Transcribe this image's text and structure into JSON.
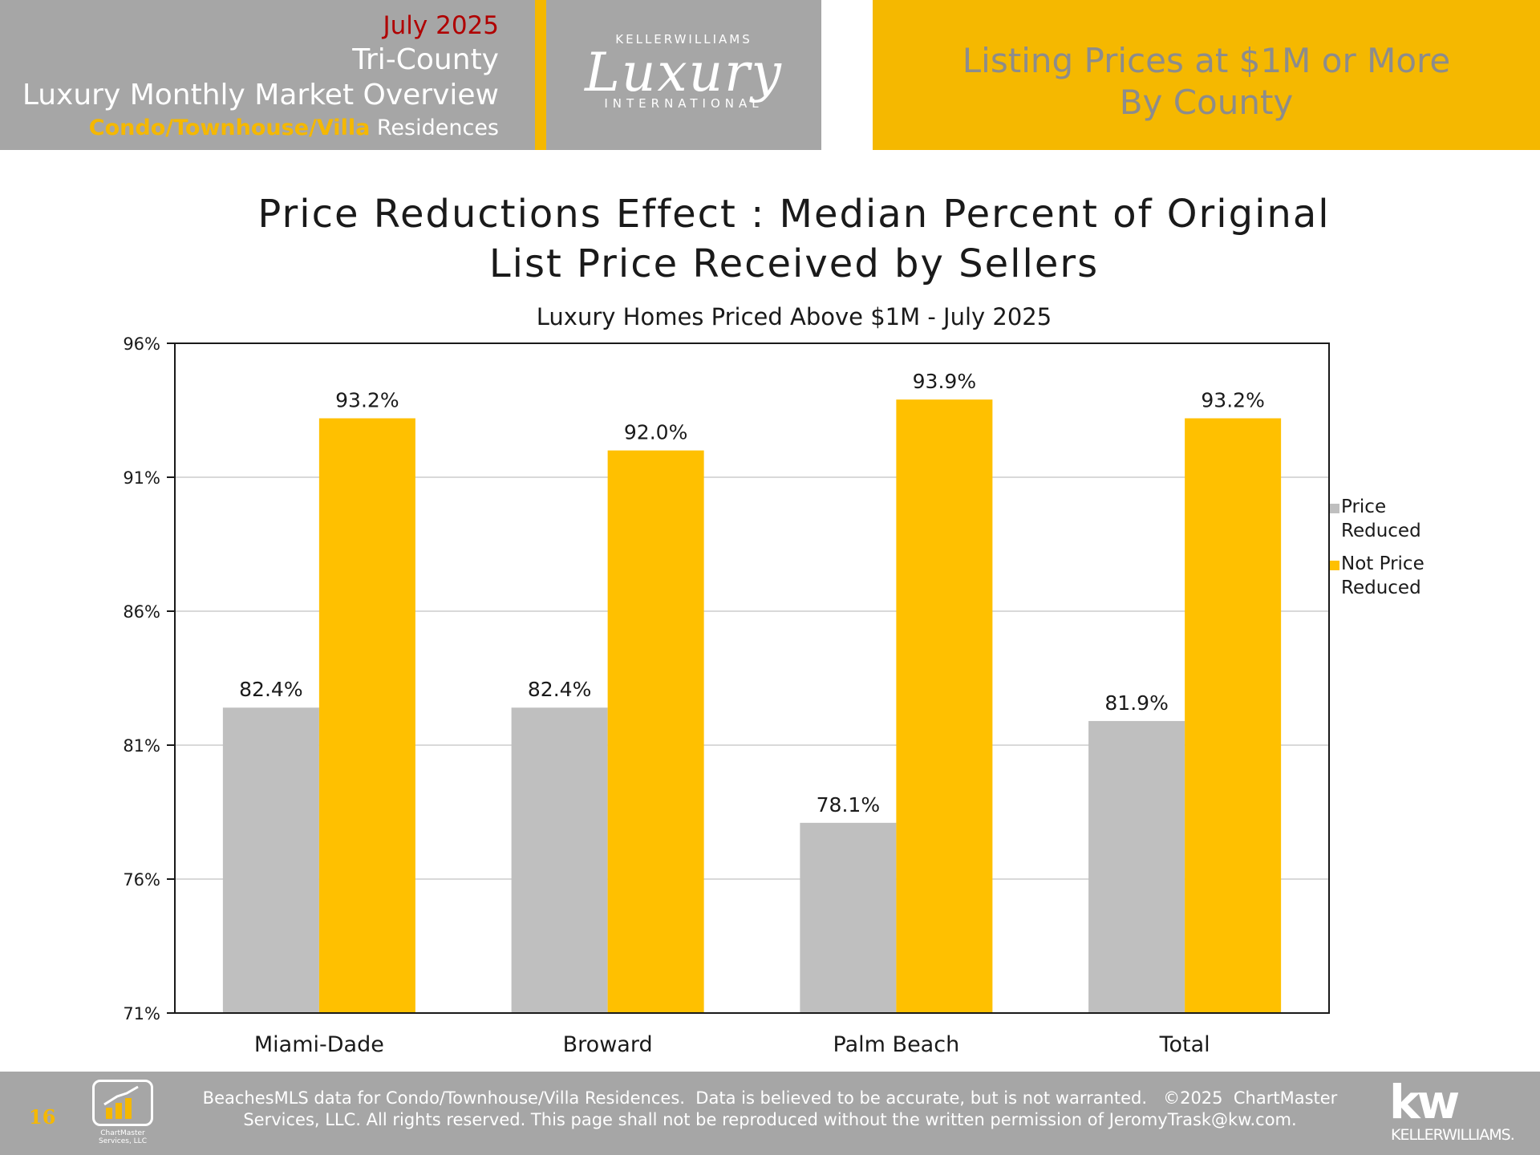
{
  "header": {
    "date": "July 2025",
    "region": "Tri-County",
    "title": "Luxury Monthly Market Overview",
    "subtitle_highlight": "Condo/Townhouse/Villa",
    "subtitle_rest": " Residences",
    "logo_top": "KELLERWILLIAMS",
    "logo_main": "Luxury",
    "logo_bottom": "INTERNATIONAL",
    "right_line1": "Listing Prices at $1M or More",
    "right_line2": "By County"
  },
  "colors": {
    "accent": "#f5b800",
    "header_gray": "#a6a6a6",
    "date_red": "#b00000",
    "series_price_reduced": "#bfbfbf",
    "series_not_price_reduced": "#ffc000"
  },
  "chart_data": {
    "type": "bar",
    "title_line1": "Price Reductions Effect : Median Percent of Original",
    "title_line2": "List Price Received by Sellers",
    "subtitle": "Luxury Homes Priced Above $1M - July 2025",
    "categories": [
      "Miami-Dade",
      "Broward",
      "Palm Beach",
      "Total"
    ],
    "series": [
      {
        "name": "Price Reduced",
        "legend_line1": "Price",
        "legend_line2": "Reduced",
        "values": [
          82.4,
          82.4,
          78.1,
          81.9
        ]
      },
      {
        "name": "Not Price Reduced",
        "legend_line1": "Not Price",
        "legend_line2": "Reduced",
        "values": [
          93.2,
          92.0,
          93.9,
          93.2
        ]
      }
    ],
    "ylim": [
      71,
      96
    ],
    "yticks": [
      96,
      91,
      86,
      81,
      76,
      71
    ],
    "ytick_suffix": "%",
    "value_suffix": "%",
    "grid": true,
    "legend_position": "right"
  },
  "footer": {
    "page_number": "16",
    "chartmaster_logo": "ChartMaster Services, LLC",
    "disclaimer_line1": "BeachesMLS data for Condo/Townhouse/Villa Residences.  Data is believed to be accurate, but is not warranted.   ©2025  ChartMaster",
    "disclaimer_line2": "Services, LLC.  All rights reserved. This page shall not be reproduced without the written permission of JeromyTrask@kw.com.",
    "kw_mark": "kw",
    "kw_name": "KELLERWILLIAMS."
  }
}
